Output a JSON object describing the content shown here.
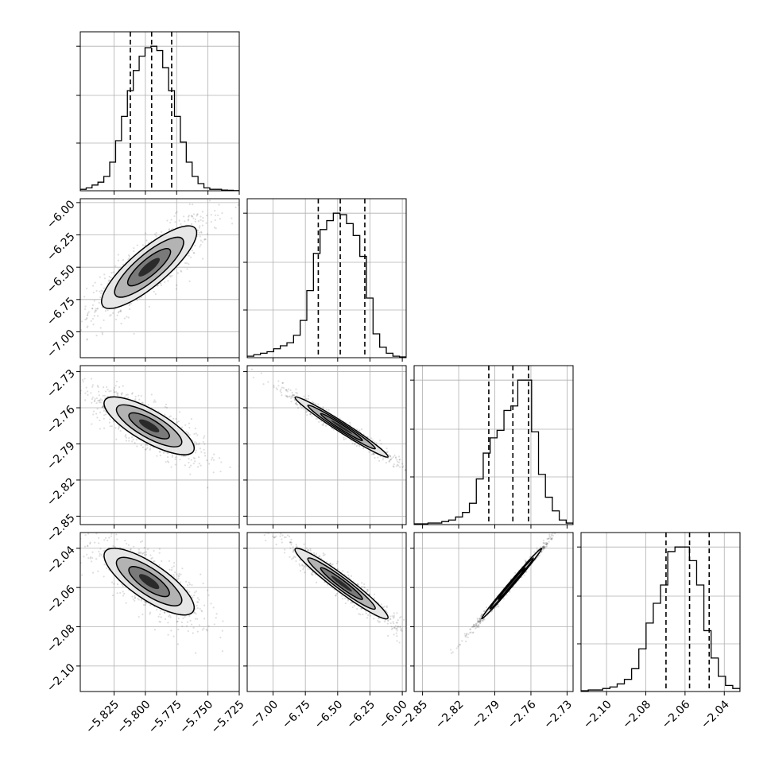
{
  "chart_data": {
    "type": "corner",
    "grid": true,
    "params": [
      {
        "range": [
          -5.852,
          -5.725
        ],
        "ticks": [
          -5.825,
          -5.8,
          -5.775,
          -5.75,
          -5.725
        ],
        "tick_labels": [
          "−5.825",
          "−5.800",
          "−5.775",
          "−5.750",
          "−5.725"
        ],
        "quantiles": [
          -5.812,
          -5.795,
          -5.779
        ],
        "hist_edges_range": [
          -5.852,
          -5.725
        ],
        "hist": [
          1,
          2,
          4,
          6,
          10,
          20,
          35,
          52,
          70,
          84,
          94,
          100,
          101,
          98,
          86,
          70,
          52,
          34,
          20,
          10,
          5,
          2,
          1,
          1,
          0.5,
          0.3,
          0.1
        ]
      },
      {
        "range": [
          -7.2,
          -5.97
        ],
        "ticks": [
          -7.0,
          -6.75,
          -6.5,
          -6.25,
          -6.0
        ],
        "tick_labels": [
          "−7.00",
          "−6.75",
          "−6.50",
          "−6.25",
          "−6.00"
        ],
        "quantiles": [
          -6.65,
          -6.48,
          -6.29
        ],
        "hist": [
          1,
          2,
          3,
          4,
          6,
          8,
          10,
          15,
          25,
          45,
          70,
          86,
          92,
          97,
          96,
          90,
          82,
          68,
          40,
          16,
          7,
          3,
          1,
          0.5
        ]
      },
      {
        "range": [
          -2.857,
          -2.725
        ],
        "ticks": [
          -2.85,
          -2.82,
          -2.79,
          -2.76,
          -2.73
        ],
        "tick_labels": [
          "−2.85",
          "−2.82",
          "−2.79",
          "−2.76",
          "−2.73"
        ],
        "quantiles": [
          -2.795,
          -2.775,
          -2.762
        ],
        "hist": [
          0.5,
          0.5,
          1,
          1,
          2,
          3,
          5,
          8,
          14,
          30,
          47,
          57,
          62,
          75,
          78,
          95,
          95,
          61,
          33,
          18,
          9,
          3,
          1
        ]
      },
      {
        "range": [
          -2.113,
          -2.032
        ],
        "ticks": [
          -2.1,
          -2.08,
          -2.06,
          -2.04
        ],
        "tick_labels": [
          "−2.10",
          "−2.08",
          "−2.06",
          "−2.04"
        ],
        "quantiles": [
          -2.0697,
          -2.0577,
          -2.0477
        ],
        "hist": [
          0.5,
          1,
          1,
          2,
          3,
          5,
          8,
          15,
          28,
          45,
          58,
          70,
          92,
          95,
          95,
          86,
          70,
          40,
          22,
          10,
          4,
          2
        ]
      }
    ],
    "pairs": [
      {
        "row": 1,
        "col": 0,
        "mean": [
          -5.797,
          -6.5
        ],
        "sd": [
          0.019,
          0.16
        ],
        "corr": 0.83
      },
      {
        "row": 2,
        "col": 0,
        "mean": [
          -5.797,
          -2.775
        ],
        "sd": [
          0.018,
          0.012
        ],
        "corr": -0.78
      },
      {
        "row": 2,
        "col": 1,
        "mean": [
          -6.47,
          -2.776
        ],
        "sd": [
          0.18,
          0.0125
        ],
        "corr": -0.98
      },
      {
        "row": 3,
        "col": 0,
        "mean": [
          -5.797,
          -2.057
        ],
        "sd": [
          0.018,
          0.0085
        ],
        "corr": -0.78
      },
      {
        "row": 3,
        "col": 1,
        "mean": [
          -6.47,
          -2.058
        ],
        "sd": [
          0.18,
          0.009
        ],
        "corr": -0.96
      },
      {
        "row": 3,
        "col": 2,
        "mean": [
          -2.776,
          -2.058
        ],
        "sd": [
          0.0125,
          0.009
        ],
        "corr": 0.995
      }
    ]
  }
}
